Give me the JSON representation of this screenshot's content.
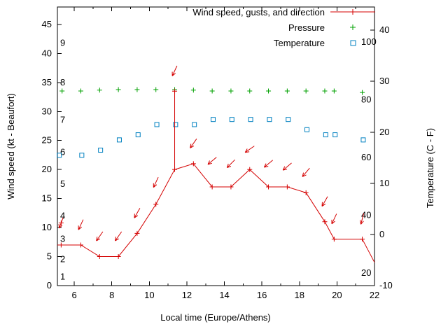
{
  "labels": {
    "xlabel": "Local time (Europe/Athens)",
    "ylabel_left": "Wind speed (kt - Beaufort)",
    "ylabel_right": "Temperature (C - F)"
  },
  "legend": {
    "items": [
      {
        "label": "Wind speed, gusts, and direction",
        "marker": "line-plus",
        "color": "#d40000"
      },
      {
        "label": "Pressure",
        "marker": "plus",
        "color": "#00a000"
      },
      {
        "label": "Temperature",
        "marker": "open-square",
        "color": "#0080c0"
      }
    ]
  },
  "chart_data": {
    "type": "line",
    "title": "",
    "x_axis": {
      "label": "Local time (Europe/Athens)",
      "range": [
        5.1,
        22
      ],
      "ticks": [
        6,
        8,
        10,
        12,
        14,
        16,
        18,
        20,
        22
      ],
      "minor_ticks": [
        7,
        9,
        11,
        13,
        15,
        17,
        19,
        21
      ]
    },
    "y_axis_wind": {
      "label": "Wind speed (kt - Beaufort)",
      "range": [
        0,
        48
      ],
      "ticks": [
        0,
        5,
        10,
        15,
        20,
        25,
        30,
        35,
        40,
        45
      ]
    },
    "y_axis_temp": {
      "label": "Temperature (C - F)",
      "range": [
        -10,
        44.5
      ],
      "ticks": [
        -10,
        0,
        10,
        20,
        30,
        40
      ]
    },
    "y_axis_press": {
      "range": [
        15.6,
        112.1
      ],
      "ticks": [
        20,
        40,
        60,
        80,
        100
      ]
    },
    "beaufort_marks": [
      {
        "label": "1",
        "kt": 1.5
      },
      {
        "label": "2",
        "kt": 4.5
      },
      {
        "label": "3",
        "kt": 8
      },
      {
        "label": "4",
        "kt": 12
      },
      {
        "label": "5",
        "kt": 17.5
      },
      {
        "label": "6",
        "kt": 23
      },
      {
        "label": "7",
        "kt": 28.5
      },
      {
        "label": "8",
        "kt": 35
      },
      {
        "label": "9",
        "kt": 41.8
      }
    ],
    "series": {
      "wind": {
        "name": "Wind speed, gusts, and direction",
        "color": "#d40000",
        "axis": "wind",
        "lead": {
          "t": 5.1,
          "kt": 7
        },
        "tail": {
          "t": 22,
          "kt": 4
        },
        "points": [
          {
            "t": 5.3,
            "kt": 7,
            "dir": 200,
            "arrow_kt": 10.8
          },
          {
            "t": 6.35,
            "kt": 7,
            "dir": 205,
            "arrow_kt": 10.5
          },
          {
            "t": 7.35,
            "kt": 5,
            "dir": 215,
            "arrow_kt": 8.5
          },
          {
            "t": 8.35,
            "kt": 5,
            "dir": 215,
            "arrow_kt": 8.5
          },
          {
            "t": 9.35,
            "kt": 9,
            "dir": 210,
            "arrow_kt": 12.5
          },
          {
            "t": 10.35,
            "kt": 14,
            "dir": 205,
            "arrow_kt": 17.8
          },
          {
            "t": 11.35,
            "kt": 20,
            "dir": 205,
            "arrow_kt": 37
          },
          {
            "t": 12.35,
            "kt": 21,
            "dir": 215,
            "arrow_kt": 24.5
          },
          {
            "t": 13.35,
            "kt": 17,
            "dir": 230,
            "arrow_kt": 21.5
          },
          {
            "t": 14.35,
            "kt": 17,
            "dir": 225,
            "arrow_kt": 21
          },
          {
            "t": 15.35,
            "kt": 20,
            "dir": 235,
            "arrow_kt": 23.5
          },
          {
            "t": 16.35,
            "kt": 17,
            "dir": 230,
            "arrow_kt": 21
          },
          {
            "t": 17.35,
            "kt": 17,
            "dir": 230,
            "arrow_kt": 20.5
          },
          {
            "t": 18.35,
            "kt": 16,
            "dir": 220,
            "arrow_kt": 19.5
          },
          {
            "t": 19.35,
            "kt": 11,
            "dir": 210,
            "arrow_kt": 14.5
          },
          {
            "t": 19.85,
            "kt": 8,
            "dir": 205,
            "arrow_kt": 11.5
          },
          {
            "t": 21.35,
            "kt": 8,
            "dir": 195,
            "arrow_kt": 11.5
          }
        ],
        "gusts": [
          {
            "t": 5.3,
            "kt": 10.8
          },
          {
            "t": 11.35,
            "kt": 33.5,
            "spike_from": 20
          }
        ]
      },
      "pressure": {
        "name": "Pressure",
        "color": "#00a000",
        "axis": "press",
        "points": [
          {
            "t": 5.35,
            "v": 83
          },
          {
            "t": 6.35,
            "v": 83
          },
          {
            "t": 7.35,
            "v": 83.3
          },
          {
            "t": 8.35,
            "v": 83.5
          },
          {
            "t": 9.35,
            "v": 83.5
          },
          {
            "t": 10.35,
            "v": 83.5
          },
          {
            "t": 11.35,
            "v": 83.5
          },
          {
            "t": 12.35,
            "v": 83.3
          },
          {
            "t": 13.35,
            "v": 83
          },
          {
            "t": 14.35,
            "v": 83
          },
          {
            "t": 15.35,
            "v": 83
          },
          {
            "t": 16.35,
            "v": 83
          },
          {
            "t": 17.35,
            "v": 83
          },
          {
            "t": 18.35,
            "v": 83
          },
          {
            "t": 19.35,
            "v": 83
          },
          {
            "t": 19.85,
            "v": 83
          },
          {
            "t": 21.35,
            "v": 82.5
          }
        ]
      },
      "temperature": {
        "name": "Temperature",
        "color": "#0080c0",
        "axis": "temp",
        "points": [
          {
            "t": 5.2,
            "c": 15.5
          },
          {
            "t": 6.4,
            "c": 15.5
          },
          {
            "t": 7.4,
            "c": 16.5
          },
          {
            "t": 8.4,
            "c": 18.5
          },
          {
            "t": 9.4,
            "c": 19.5
          },
          {
            "t": 10.4,
            "c": 21.5
          },
          {
            "t": 11.4,
            "c": 21.5
          },
          {
            "t": 12.4,
            "c": 21.5
          },
          {
            "t": 13.4,
            "c": 22.5
          },
          {
            "t": 14.4,
            "c": 22.5
          },
          {
            "t": 15.4,
            "c": 22.5
          },
          {
            "t": 16.4,
            "c": 22.5
          },
          {
            "t": 17.4,
            "c": 22.5
          },
          {
            "t": 18.4,
            "c": 20.5
          },
          {
            "t": 19.4,
            "c": 19.5
          },
          {
            "t": 19.9,
            "c": 19.5
          },
          {
            "t": 21.4,
            "c": 18.5
          }
        ]
      }
    }
  }
}
